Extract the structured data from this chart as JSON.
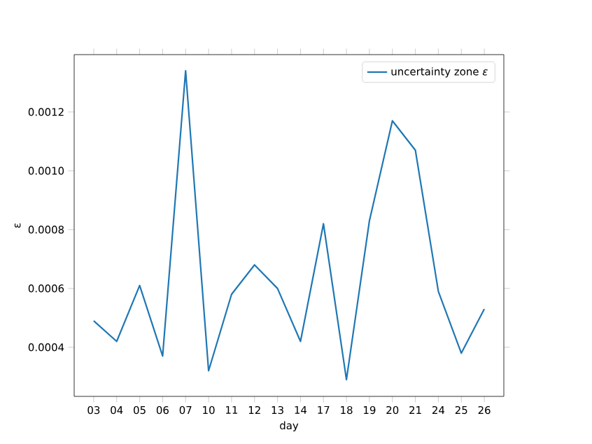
{
  "chart_data": {
    "type": "line",
    "xlabel": "day",
    "ylabel": "ε",
    "categories": [
      "03",
      "04",
      "05",
      "06",
      "07",
      "10",
      "11",
      "12",
      "13",
      "14",
      "17",
      "18",
      "19",
      "20",
      "21",
      "24",
      "25",
      "26"
    ],
    "series": [
      {
        "name": "uncertainty zone *ε*",
        "color": "#1f77b4",
        "values": [
          0.00049,
          0.00042,
          0.00061,
          0.00037,
          0.00134,
          0.00032,
          0.00058,
          0.00068,
          0.0006,
          0.00042,
          0.00082,
          0.00029,
          0.00083,
          0.00117,
          0.00107,
          0.00059,
          0.00038,
          0.00053
        ]
      }
    ],
    "ylim": [
      0.000233,
      0.001395
    ],
    "yticks": [
      {
        "value": 0.0004,
        "label": "0.0004"
      },
      {
        "value": 0.0006,
        "label": "0.0006"
      },
      {
        "value": 0.0008,
        "label": "0.0008"
      },
      {
        "value": 0.001,
        "label": "0.0010"
      },
      {
        "value": 0.0012,
        "label": "0.0012"
      }
    ],
    "legend": "top right",
    "grid": false
  }
}
